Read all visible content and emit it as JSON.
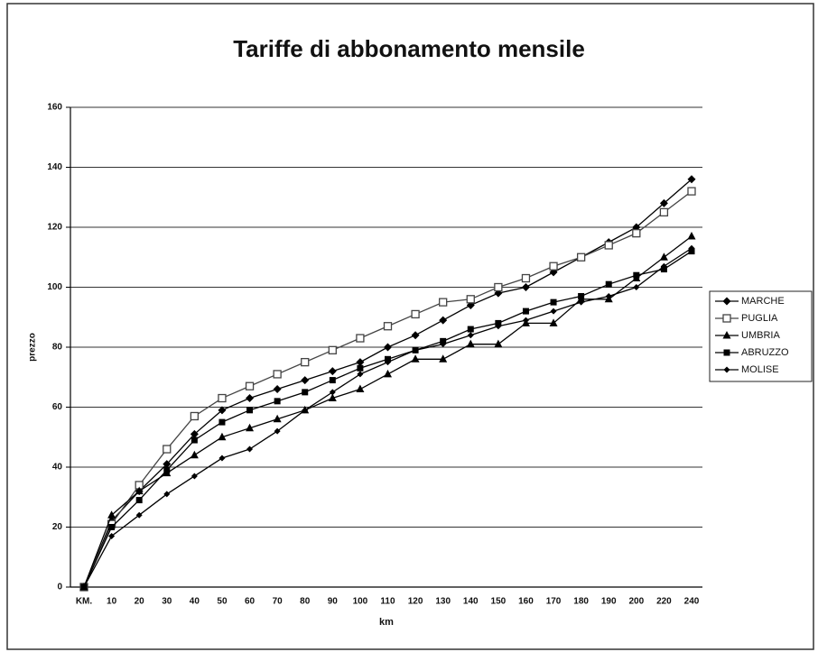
{
  "chart_data": {
    "type": "line",
    "title": "Tariffe di abbonamento mensile",
    "x_label": "km",
    "y_label": "prezzo",
    "categories": [
      "KM.",
      "10",
      "20",
      "30",
      "40",
      "50",
      "60",
      "70",
      "80",
      "90",
      "100",
      "110",
      "120",
      "130",
      "140",
      "150",
      "160",
      "170",
      "180",
      "190",
      "200",
      "220",
      "240"
    ],
    "series": [
      {
        "name": "MARCHE",
        "color": "#000000",
        "marker": "diamond",
        "values": [
          0,
          22,
          32,
          41,
          51,
          59,
          63,
          66,
          69,
          72,
          75,
          80,
          84,
          89,
          94,
          98,
          100,
          105,
          110,
          115,
          120,
          128,
          136
        ]
      },
      {
        "name": "PUGLIA",
        "color": "#444444",
        "marker": "square-open",
        "values": [
          0,
          21,
          34,
          46,
          57,
          63,
          67,
          71,
          75,
          79,
          83,
          87,
          91,
          95,
          96,
          100,
          103,
          107,
          110,
          114,
          118,
          125,
          132
        ]
      },
      {
        "name": "UMBRIA",
        "color": "#000000",
        "marker": "triangle",
        "values": [
          0,
          24,
          32,
          38,
          44,
          50,
          53,
          56,
          59,
          63,
          66,
          71,
          76,
          76,
          81,
          81,
          88,
          88,
          96,
          96,
          103,
          110,
          117
        ]
      },
      {
        "name": "ABRUZZO",
        "color": "#000000",
        "marker": "square",
        "values": [
          0,
          20,
          29,
          39,
          49,
          55,
          59,
          62,
          65,
          69,
          73,
          76,
          79,
          82,
          86,
          88,
          92,
          95,
          97,
          101,
          104,
          106,
          112
        ]
      },
      {
        "name": "MOLISE",
        "color": "#000000",
        "marker": "diamond-small",
        "values": [
          0,
          17,
          24,
          31,
          37,
          43,
          46,
          52,
          59,
          65,
          71,
          75,
          79,
          81,
          84,
          87,
          89,
          92,
          95,
          97,
          100,
          107,
          113
        ]
      }
    ],
    "ylim": [
      0,
      160
    ],
    "yticks": [
      0,
      20,
      40,
      60,
      80,
      100,
      120,
      140,
      160
    ],
    "grid": true,
    "legend": "right"
  }
}
